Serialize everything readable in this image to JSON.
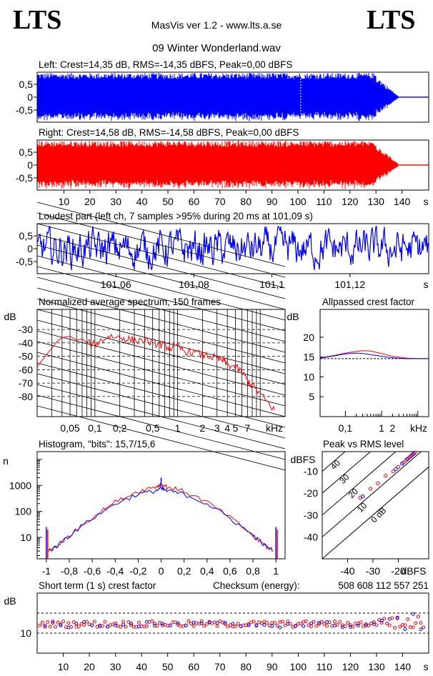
{
  "header": {
    "logo_left": "LTS",
    "logo_right": "LTS",
    "app": "MasVis ver 1.2 - www.lts.a.se",
    "file": "09 Winter Wonderland.wav"
  },
  "colors": {
    "left": "#0000ff",
    "right": "#ff0000",
    "ref": "#000000"
  },
  "chart_data": [
    {
      "id": "left-waveform",
      "type": "area",
      "title": "Left: Crest=14,35 dB, RMS=-14,35 dBFS, Peak=0,00 dBFS",
      "yticks": [
        "0,5",
        "0",
        "-0,5"
      ],
      "ylim": [
        -1,
        1
      ],
      "xlim": [
        0,
        150
      ],
      "duration_s": 150,
      "fade_start_s": 130,
      "fade_end_s": 139,
      "marker_s": 101.09,
      "color": "#0000ff"
    },
    {
      "id": "right-waveform",
      "type": "area",
      "title": "Right: Crest=14,58 dB, RMS=-14,58 dBFS, Peak=0,00 dBFS",
      "yticks": [
        "0,5",
        "0",
        "-0,5"
      ],
      "ylim": [
        -1,
        1
      ],
      "xlim": [
        0,
        150
      ],
      "xticks": [
        "10",
        "20",
        "30",
        "40",
        "50",
        "60",
        "70",
        "80",
        "90",
        "100",
        "110",
        "120",
        "130",
        "140"
      ],
      "xunit": "s",
      "color": "#ff0000"
    },
    {
      "id": "loudest-part",
      "type": "line",
      "title": "Loudest part (left  ch, 7 samples >95% during 20 ms at 101,09 s)",
      "yticks": [
        "0,5",
        "0",
        "-0,5"
      ],
      "ylim": [
        -1,
        1
      ],
      "xlim": [
        101.04,
        101.14
      ],
      "xticks": [
        "101,06",
        "101,08",
        "101,1",
        "101,12"
      ],
      "xunit": "s",
      "color": "#0000ff"
    },
    {
      "id": "avg-spectrum",
      "type": "line",
      "title": "Normalized average spectrum, 150 frames",
      "ylabel": "dB",
      "ylim": [
        -95,
        -15
      ],
      "xscale": "log",
      "xlim_khz": [
        0.02,
        20
      ],
      "yticks": [
        "-30",
        "-40",
        "-50",
        "-60",
        "-70",
        "-80"
      ],
      "xticks": [
        "0,05",
        "0,1",
        "0,2",
        "0,5",
        "1",
        "2",
        "3",
        "4",
        "5",
        "7"
      ],
      "xunit": "kHz",
      "series": [
        {
          "x_khz": [
            0.02,
            0.025,
            0.03,
            0.035,
            0.04,
            0.05,
            0.06,
            0.07,
            0.08,
            0.1,
            0.12,
            0.15,
            0.2,
            0.25,
            0.3,
            0.4,
            0.5,
            0.6,
            0.7,
            0.8,
            1,
            1.2,
            1.5,
            2,
            2.5,
            3,
            3.5,
            4,
            5,
            6,
            7,
            8,
            10,
            12,
            15
          ],
          "db": [
            -58,
            -50,
            -44,
            -39,
            -36,
            -35,
            -38,
            -37,
            -40,
            -41,
            -38,
            -35,
            -36,
            -37,
            -38,
            -38,
            -40,
            -41,
            -42,
            -44,
            -43,
            -46,
            -47,
            -49,
            -50,
            -52,
            -53,
            -56,
            -58,
            -62,
            -68,
            -72,
            -78,
            -84,
            -90
          ]
        }
      ]
    },
    {
      "id": "allpassed-crest",
      "type": "line",
      "title": "Allpassed crest factor",
      "ylabel": "dB",
      "ylim": [
        0,
        27
      ],
      "xscale": "log",
      "xlim_khz": [
        0.02,
        20
      ],
      "yticks": [
        "20",
        "15",
        "10",
        "5"
      ],
      "xticks": [
        "0,1",
        "1",
        "2",
        "kHz"
      ],
      "reference_db": 14.6,
      "series": [
        {
          "name": "",
          "color": "#ff0000",
          "x_khz": [
            0.02,
            0.05,
            0.1,
            0.2,
            0.3,
            0.5,
            1,
            2,
            5,
            10,
            20
          ],
          "db": [
            14.8,
            15.4,
            16.0,
            16.4,
            16.6,
            16.5,
            15.9,
            15.2,
            14.7,
            14.6,
            14.6
          ]
        },
        {
          "name": "",
          "color": "#0000ff",
          "x_khz": [
            0.02,
            0.05,
            0.1,
            0.2,
            0.3,
            0.5,
            1,
            2,
            5,
            10,
            20
          ],
          "db": [
            14.7,
            15.3,
            15.8,
            16.0,
            15.9,
            15.6,
            15.2,
            14.8,
            14.6,
            14.6,
            14.6
          ]
        }
      ]
    },
    {
      "id": "histogram",
      "type": "line",
      "title": "Histogram, \"bits\": 15,7/15,6",
      "ylabel": "n",
      "yscale": "log",
      "ylim": [
        1.5,
        20000
      ],
      "xlim": [
        -1.08,
        1.08
      ],
      "yticks": [
        "1000",
        "100",
        "10"
      ],
      "xticks": [
        "-1",
        "-0,8",
        "-0,6",
        "-0,4",
        "-0,2",
        "0",
        "0,2",
        "0,4",
        "0,6",
        "0,8",
        "1"
      ],
      "series": [
        {
          "name": "",
          "color": "#ff0000",
          "x": [
            -0.98,
            -0.9,
            -0.8,
            -0.6,
            -0.4,
            -0.2,
            -0.05,
            0,
            0.05,
            0.2,
            0.4,
            0.6,
            0.8,
            0.9,
            0.98
          ],
          "n": [
            3,
            5,
            12,
            60,
            230,
            600,
            900,
            1100,
            900,
            600,
            230,
            60,
            12,
            5,
            3
          ]
        },
        {
          "name": "",
          "color": "#0000ff",
          "x": [
            -0.98,
            -0.9,
            -0.8,
            -0.6,
            -0.4,
            -0.2,
            -0.05,
            0,
            0.05,
            0.2,
            0.4,
            0.6,
            0.8,
            0.9,
            0.98
          ],
          "n": [
            3,
            5,
            12,
            55,
            200,
            470,
            620,
            750,
            620,
            470,
            200,
            55,
            12,
            5,
            3
          ]
        }
      ],
      "edge_spikes": [
        {
          "x": -1,
          "n": 25
        },
        {
          "x": 1,
          "n": 25
        }
      ],
      "center_spike": {
        "x": 0,
        "n": 2000
      }
    },
    {
      "id": "peak-vs-rms",
      "type": "scatter",
      "title": "Peak vs RMS level",
      "xlabel": "dBFS",
      "ylabel": "dBFS",
      "xlim": [
        -50,
        -8
      ],
      "ylim": [
        -50,
        -1
      ],
      "xticks": [
        "-40",
        "-30",
        "-20"
      ],
      "yticks": [
        "-10",
        "-20",
        "-30",
        "-40"
      ],
      "diagonal_labels": [
        "40",
        "30",
        "20",
        "10",
        "0 dB"
      ],
      "series": [
        {
          "name": "",
          "color": "#ff0000",
          "points": [
            [
              -35,
              -22
            ],
            [
              -31,
              -18
            ],
            [
              -28,
              -15.5
            ],
            [
              -25,
              -12
            ],
            [
              -22,
              -10
            ],
            [
              -20,
              -8
            ],
            [
              -18,
              -6
            ],
            [
              -17,
              -5
            ],
            [
              -16,
              -4
            ],
            [
              -15.5,
              -3.5
            ],
            [
              -15,
              -3
            ],
            [
              -14.5,
              -2.5
            ],
            [
              -14,
              -2
            ],
            [
              -13.5,
              -1.5
            ]
          ]
        },
        {
          "name": "",
          "color": "#0000ff",
          "points": [
            [
              -34,
              -21.5
            ],
            [
              -21,
              -9
            ],
            [
              -18.5,
              -6.5
            ],
            [
              -16.5,
              -4.5
            ],
            [
              -15,
              -3
            ],
            [
              -14,
              -2
            ]
          ]
        }
      ]
    },
    {
      "id": "short-term-crest",
      "type": "scatter",
      "title": "Short term (1 s) crest factor",
      "checksum_label": "Checksum (energy):",
      "checksum_value": "508 608 112 557 251",
      "ylabel": "dB",
      "ylim": [
        0,
        30
      ],
      "xlim": [
        0,
        150
      ],
      "yticks": [
        "10"
      ],
      "guide_lines_db": [
        20,
        10
      ],
      "xticks": [
        "10",
        "20",
        "30",
        "40",
        "50",
        "60",
        "70",
        "80",
        "90",
        "100",
        "110",
        "120",
        "130",
        "140"
      ],
      "xunit": "s",
      "series": [
        {
          "name": "",
          "color": "#ff0000",
          "crest_db_base": 14.5
        },
        {
          "name": "",
          "color": "#0000ff",
          "crest_db_base": 14.2
        }
      ]
    }
  ]
}
